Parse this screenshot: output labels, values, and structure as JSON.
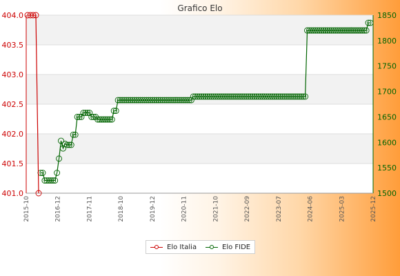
{
  "chart_data": {
    "type": "line",
    "title": "Grafico Elo",
    "legend_position": "bottom",
    "grid": true,
    "left_axis": {
      "ylim": [
        401.0,
        404.0
      ],
      "ticks": [
        "401.0",
        "401.5",
        "402.0",
        "402.5",
        "403.0",
        "403.5",
        "404.0"
      ],
      "color": "#cc0000"
    },
    "right_axis": {
      "ylim": [
        1500,
        1850
      ],
      "ticks": [
        "1500",
        "1550",
        "1600",
        "1650",
        "1700",
        "1750",
        "1800",
        "1850"
      ],
      "color": "#006400"
    },
    "x_tick_labels": [
      "2015-10",
      "2016-12",
      "2017-11",
      "2018-10",
      "2019-12",
      "2020-11",
      "2021-10",
      "2022-09",
      "2023-07",
      "2024-06",
      "2025-03",
      "2025-12"
    ],
    "series": [
      {
        "name": "Elo Italia",
        "axis": "left",
        "color": "#cc0000",
        "values": [
          404.0,
          404.0,
          404.0,
          404.0,
          401.0
        ]
      },
      {
        "name": "Elo FIDE",
        "axis": "right",
        "color": "#006400",
        "values": [
          1540,
          1540,
          1525,
          1525,
          1525,
          1525,
          1525,
          1525,
          1540,
          1568,
          1603,
          1588,
          1597,
          1595,
          1595,
          1595,
          1615,
          1615,
          1650,
          1650,
          1650,
          1658,
          1658,
          1658,
          1658,
          1650,
          1650,
          1650,
          1645,
          1645,
          1645,
          1645,
          1645,
          1645,
          1645,
          1645,
          1662,
          1662,
          1683,
          1683,
          1683,
          1683,
          1683,
          1683,
          1683,
          1683,
          1683,
          1683,
          1683,
          1683,
          1683,
          1683,
          1683,
          1683,
          1683,
          1683,
          1683,
          1683,
          1683,
          1683,
          1683,
          1683,
          1683,
          1683,
          1683,
          1683,
          1683,
          1683,
          1683,
          1683,
          1683,
          1683,
          1683,
          1683,
          1683,
          1690,
          1690,
          1690,
          1690,
          1690,
          1690,
          1690,
          1690,
          1690,
          1690,
          1690,
          1690,
          1690,
          1690,
          1690,
          1690,
          1690,
          1690,
          1690,
          1690,
          1690,
          1690,
          1690,
          1690,
          1690,
          1690,
          1690,
          1690,
          1690,
          1690,
          1690,
          1690,
          1690,
          1690,
          1690,
          1690,
          1690,
          1690,
          1690,
          1690,
          1690,
          1690,
          1690,
          1690,
          1690,
          1690,
          1690,
          1690,
          1690,
          1690,
          1690,
          1690,
          1690,
          1690,
          1690,
          1690,
          1820,
          1820,
          1820,
          1820,
          1820,
          1820,
          1820,
          1820,
          1820,
          1820,
          1820,
          1820,
          1820,
          1820,
          1820,
          1820,
          1820,
          1820,
          1820,
          1820,
          1820,
          1820,
          1820,
          1820,
          1820,
          1820,
          1820,
          1820,
          1820,
          1820,
          1835,
          1835
        ]
      }
    ]
  }
}
